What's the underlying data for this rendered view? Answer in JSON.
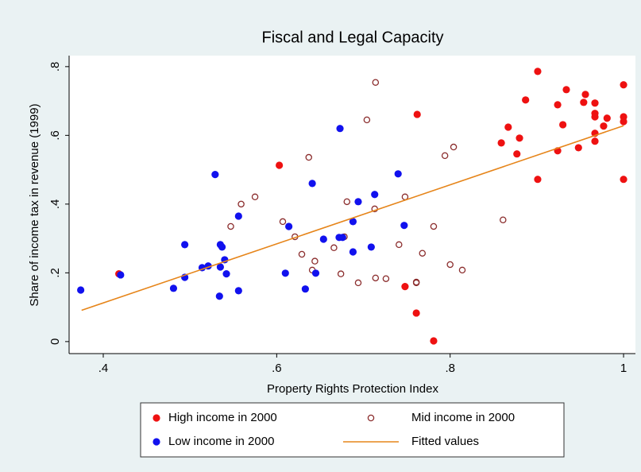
{
  "chart_data": {
    "type": "scatter",
    "title": "Fiscal and Legal Capacity",
    "x_label": "Property Rights Protection Index",
    "y_label": "Share of income tax in revenue (1999)",
    "xlim": [
      0.3606,
      1.0137
    ],
    "ylim": [
      -0.035,
      0.832
    ],
    "xticks": [
      {
        "value": 0.4,
        "label": ".4"
      },
      {
        "value": 0.6,
        "label": ".6"
      },
      {
        "value": 0.8,
        "label": ".8"
      },
      1
    ],
    "yticks": [
      0,
      {
        "value": 0.2,
        "label": ".2"
      },
      {
        "value": 0.4,
        "label": ".4"
      },
      {
        "value": 0.6,
        "label": ".6"
      },
      {
        "value": 0.8,
        "label": ".8"
      }
    ],
    "grid": false,
    "legend": "bottom",
    "series": [
      {
        "name": "High income in 2000",
        "color": "#ee1111",
        "marker": "filled",
        "x": [
          0.418,
          0.603,
          0.762,
          0.748,
          0.761,
          0.781,
          0.859,
          0.867,
          0.877,
          0.88,
          0.887,
          0.901,
          0.901,
          0.924,
          0.924,
          0.93,
          0.934,
          0.948,
          0.954,
          0.956,
          0.967,
          0.967,
          0.967,
          0.967,
          0.967,
          0.977,
          0.981,
          1.0,
          1.0,
          1.0,
          1.0
        ],
        "values": [
          0.197,
          0.513,
          0.661,
          0.16,
          0.083,
          0.002,
          0.578,
          0.624,
          0.546,
          0.592,
          0.703,
          0.786,
          0.472,
          0.689,
          0.555,
          0.631,
          0.733,
          0.564,
          0.696,
          0.719,
          0.694,
          0.664,
          0.654,
          0.606,
          0.583,
          0.627,
          0.65,
          0.747,
          0.654,
          0.64,
          0.472
        ]
      },
      {
        "name": "Mid income in 2000",
        "color": "#8b2d2d",
        "marker": "hollow",
        "x": [
          0.547,
          0.559,
          0.575,
          0.607,
          0.621,
          0.629,
          0.637,
          0.641,
          0.644,
          0.666,
          0.674,
          0.678,
          0.681,
          0.694,
          0.704,
          0.714,
          0.713,
          0.714,
          0.726,
          0.741,
          0.748,
          0.761,
          0.761,
          0.768,
          0.781,
          0.794,
          0.804,
          0.8,
          0.814,
          0.861
        ],
        "values": [
          0.335,
          0.4,
          0.421,
          0.349,
          0.305,
          0.254,
          0.536,
          0.208,
          0.234,
          0.273,
          0.197,
          0.305,
          0.407,
          0.171,
          0.645,
          0.754,
          0.386,
          0.185,
          0.183,
          0.282,
          0.421,
          0.173,
          0.171,
          0.257,
          0.335,
          0.541,
          0.566,
          0.224,
          0.208,
          0.354
        ]
      },
      {
        "name": "Low income in 2000",
        "color": "#1111ee",
        "marker": "filled",
        "x": [
          0.374,
          0.42,
          0.481,
          0.494,
          0.494,
          0.514,
          0.521,
          0.529,
          0.537,
          0.534,
          0.535,
          0.535,
          0.54,
          0.542,
          0.556,
          0.556,
          0.61,
          0.614,
          0.633,
          0.641,
          0.645,
          0.654,
          0.672,
          0.676,
          0.673,
          0.688,
          0.688,
          0.694,
          0.709,
          0.713,
          0.74,
          0.747
        ],
        "values": [
          0.15,
          0.194,
          0.155,
          0.187,
          0.282,
          0.215,
          0.22,
          0.486,
          0.275,
          0.132,
          0.217,
          0.282,
          0.238,
          0.197,
          0.365,
          0.148,
          0.199,
          0.335,
          0.153,
          0.46,
          0.199,
          0.298,
          0.303,
          0.303,
          0.62,
          0.349,
          0.261,
          0.407,
          0.275,
          0.428,
          0.488,
          0.338
        ]
      },
      {
        "name": "Fitted values",
        "color": "#e6851a",
        "marker": "line",
        "x": [
          0.375,
          1.0
        ],
        "values": [
          0.091,
          0.628
        ]
      }
    ]
  }
}
